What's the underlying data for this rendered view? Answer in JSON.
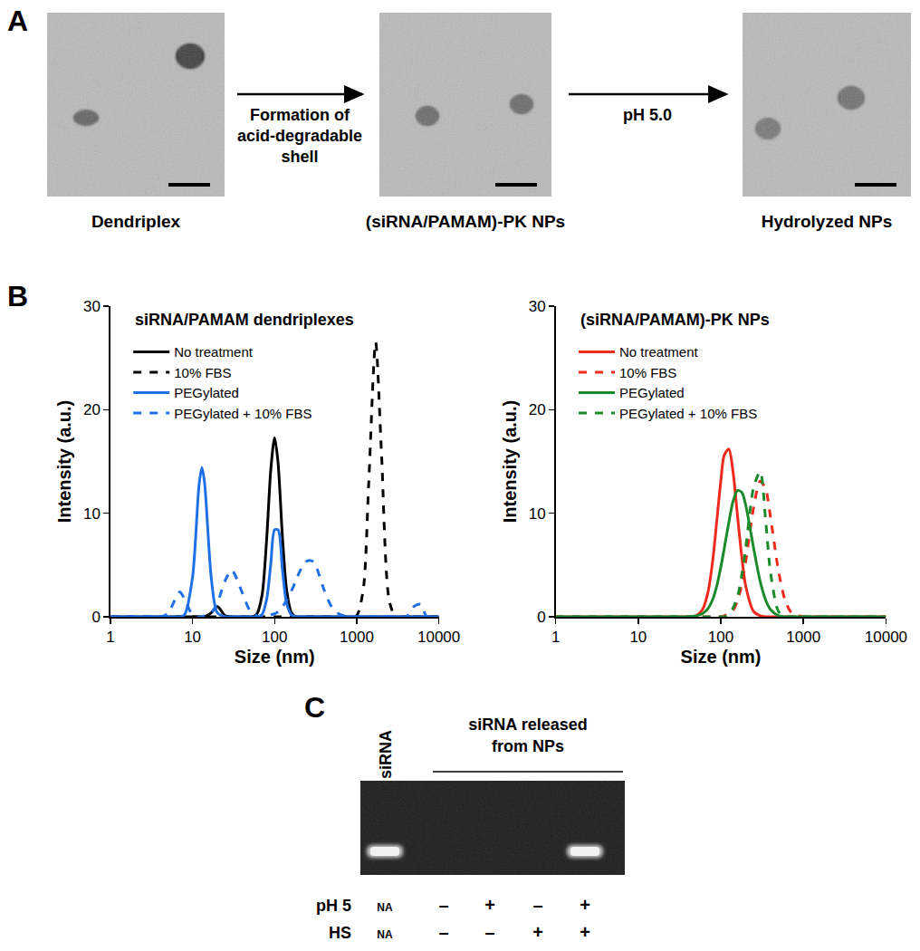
{
  "panel_a": {
    "label": "A",
    "images": [
      "Dendriplex",
      "(siRNA/PAMAM)-PK NPs",
      "Hydrolyzed NPs"
    ],
    "arrows": [
      [
        "Formation of",
        "acid-degradable",
        "shell"
      ],
      [
        "pH 5.0"
      ]
    ]
  },
  "panel_b": {
    "label": "B"
  },
  "chart_data": [
    {
      "type": "line",
      "title": "siRNA/PAMAM dendriplexes",
      "x_label": "Size (nm)",
      "y_label": "Intensity (a.u.)",
      "log": "x",
      "grid": false,
      "legend": "upper left",
      "xlim": [
        1,
        10000
      ],
      "xticks": [
        1,
        10,
        100,
        1000,
        10000
      ],
      "ylim": [
        0,
        30
      ],
      "yticks": [
        0,
        10,
        20,
        30
      ],
      "x": [
        1,
        2,
        3,
        4,
        5,
        6,
        7,
        8,
        10,
        12,
        13,
        14,
        17,
        20,
        25,
        30,
        40,
        50,
        60,
        70,
        80,
        90,
        100,
        110,
        125,
        140,
        160,
        180,
        200,
        250,
        300,
        350,
        400,
        500,
        600,
        700,
        800,
        900,
        1000,
        1200,
        1400,
        1700,
        2000,
        2500,
        3000,
        4000,
        5000,
        6000,
        7000,
        8000,
        10000
      ],
      "series": [
        {
          "name": "No treatment",
          "color": "#000000",
          "line_style": "solid",
          "values": [
            0,
            0,
            0,
            0,
            0,
            0,
            0,
            0,
            0,
            0,
            0,
            0,
            0.4,
            1.0,
            0.1,
            0,
            0,
            0,
            0.2,
            2.0,
            7.5,
            14.3,
            17.3,
            14.9,
            7.5,
            2.6,
            0.4,
            0,
            0,
            0,
            0,
            0,
            0,
            0,
            0,
            0,
            0,
            0,
            0,
            0,
            0,
            0,
            0,
            0,
            0,
            0,
            0,
            0,
            0,
            0,
            0
          ]
        },
        {
          "name": "10% FBS",
          "color": "#000000",
          "line_style": "dashed",
          "values": [
            0,
            0,
            0,
            0,
            0,
            0,
            0,
            0,
            0,
            0,
            0,
            0,
            0,
            0,
            0,
            0,
            0,
            0,
            0,
            0,
            0,
            0,
            0,
            0,
            0,
            0,
            0,
            0,
            0,
            0,
            0,
            0,
            0,
            0,
            0,
            0,
            0,
            0,
            0.1,
            2.6,
            12.9,
            26.5,
            15.9,
            1.5,
            0,
            0,
            0,
            0,
            0,
            0,
            0
          ]
        },
        {
          "name": "PEGylated",
          "color": "#1f6fe5",
          "line_style": "solid",
          "values": [
            0,
            0,
            0,
            0,
            0,
            0,
            0,
            0.2,
            3.8,
            12.7,
            14.4,
            13.0,
            3.6,
            0.4,
            0,
            0,
            0,
            0,
            0,
            0.2,
            1.7,
            5.2,
            8.4,
            8.4,
            4.4,
            1.3,
            0.2,
            0,
            0,
            0,
            0,
            0,
            0,
            0,
            0,
            0,
            0,
            0,
            0,
            0,
            0,
            0,
            0,
            0,
            0,
            0,
            0,
            0,
            0,
            0,
            0
          ]
        },
        {
          "name": "PEGylated + 10% FBS",
          "color": "#1f6fe5",
          "line_style": "dashed",
          "values": [
            0,
            0,
            0,
            0,
            0.3,
            1.5,
            2.4,
            1.7,
            0.2,
            0,
            0,
            0.1,
            0.4,
            1.3,
            3.5,
            4.5,
            2.4,
            0.6,
            0.1,
            0,
            0.1,
            0.2,
            0.3,
            0.5,
            1.0,
            1.6,
            2.5,
            3.4,
            4.3,
            5.4,
            5.3,
            4.0,
            2.6,
            0.9,
            0.3,
            0.1,
            0,
            0,
            0,
            0,
            0,
            0,
            0,
            0,
            0,
            0,
            1.0,
            1.2,
            0.1,
            0,
            0
          ]
        }
      ]
    },
    {
      "type": "line",
      "title": "(siRNA/PAMAM)-PK NPs",
      "x_label": "Size (nm)",
      "y_label": "Intensity (a.u.)",
      "log": "x",
      "grid": false,
      "legend": "upper left",
      "xlim": [
        1,
        10000
      ],
      "xticks": [
        1,
        10,
        100,
        1000,
        10000
      ],
      "ylim": [
        0,
        30
      ],
      "yticks": [
        0,
        10,
        20,
        30
      ],
      "x": [
        1,
        2,
        3,
        4,
        5,
        6,
        7,
        8,
        10,
        12,
        13,
        14,
        17,
        20,
        25,
        30,
        40,
        50,
        60,
        70,
        80,
        90,
        100,
        110,
        125,
        140,
        160,
        180,
        200,
        250,
        300,
        350,
        400,
        500,
        600,
        700,
        800,
        900,
        1000,
        1200,
        1400,
        1700,
        2000,
        2500,
        3000,
        4000,
        5000,
        6000,
        7000,
        8000,
        10000
      ],
      "series": [
        {
          "name": "No treatment",
          "color": "#ee2a1c",
          "line_style": "solid",
          "values": [
            0,
            0,
            0,
            0,
            0,
            0,
            0,
            0,
            0,
            0,
            0,
            0,
            0,
            0,
            0,
            0,
            0,
            0.1,
            0.7,
            2.4,
            5.5,
            9.5,
            13.1,
            15.6,
            16.2,
            14.1,
            9.6,
            5.7,
            3.0,
            0.5,
            0.1,
            0,
            0,
            0,
            0,
            0,
            0,
            0,
            0,
            0,
            0,
            0,
            0,
            0,
            0,
            0,
            0,
            0,
            0,
            0,
            0
          ]
        },
        {
          "name": "10% FBS",
          "color": "#ee2a1c",
          "line_style": "dashed",
          "values": [
            0,
            0,
            0,
            0,
            0,
            0,
            0,
            0,
            0,
            0,
            0,
            0,
            0,
            0,
            0,
            0,
            0,
            0,
            0,
            0,
            0,
            0,
            0,
            0.1,
            0.3,
            0.6,
            1.6,
            3.2,
            5.3,
            10.6,
            13.1,
            12.3,
            9.6,
            4.4,
            1.6,
            0.5,
            0.2,
            0.1,
            0,
            0,
            0,
            0,
            0,
            0,
            0,
            0,
            0,
            0,
            0,
            0,
            0
          ]
        },
        {
          "name": "PEGylated",
          "color": "#1a8a2a",
          "line_style": "solid",
          "values": [
            0,
            0,
            0,
            0,
            0,
            0,
            0,
            0,
            0,
            0,
            0,
            0,
            0,
            0,
            0,
            0,
            0,
            0.1,
            0.3,
            0.8,
            1.7,
            3.1,
            4.8,
            6.6,
            9.1,
            11.1,
            12.2,
            12.0,
            10.8,
            6.6,
            3.4,
            1.6,
            0.7,
            0.1,
            0,
            0,
            0,
            0,
            0,
            0,
            0,
            0,
            0,
            0,
            0,
            0,
            0,
            0,
            0,
            0,
            0
          ]
        },
        {
          "name": "PEGylated + 10% FBS",
          "color": "#1a8a2a",
          "line_style": "dashed",
          "values": [
            0,
            0,
            0,
            0,
            0,
            0,
            0,
            0,
            0,
            0,
            0,
            0,
            0,
            0,
            0,
            0,
            0,
            0,
            0,
            0,
            0,
            0,
            0,
            0,
            0.3,
            0.8,
            2.0,
            4.1,
            6.6,
            12.5,
            14.0,
            9.2,
            4.3,
            0.5,
            0,
            0,
            0,
            0,
            0,
            0,
            0,
            0,
            0,
            0,
            0,
            0,
            0,
            0,
            0,
            0,
            0
          ]
        }
      ]
    }
  ],
  "panel_c": {
    "label": "C",
    "lane_header": "siRNA",
    "group_header": [
      "siRNA released",
      "from NPs"
    ],
    "bands": [
      true,
      false,
      false,
      false,
      true
    ],
    "rows": [
      {
        "label": "pH 5",
        "values": [
          "NA",
          "–",
          "+",
          "–",
          "+"
        ]
      },
      {
        "label": "HS",
        "values": [
          "NA",
          "–",
          "–",
          "+",
          "+"
        ]
      }
    ]
  }
}
